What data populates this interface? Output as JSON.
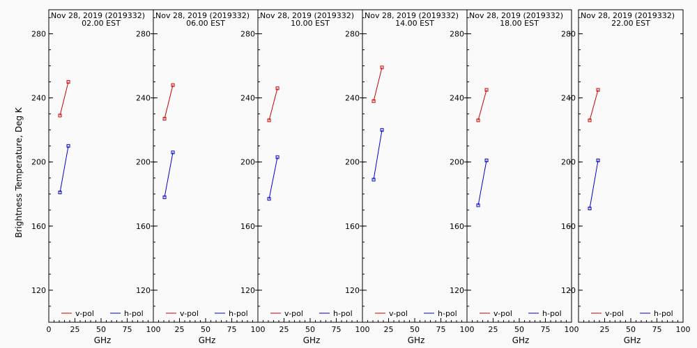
{
  "ylabel": "Brightness Temperature, Deg K",
  "colors": {
    "vpol": "#cc0000",
    "hpol": "#0000cc",
    "background": "#fafafa",
    "axis": "#000000"
  },
  "chart_data": [
    {
      "type": "line",
      "title": "Nov 28, 2019 (2019332)",
      "subtitle": "02.00 EST",
      "xlabel": "GHz",
      "xlim": [
        0,
        100
      ],
      "ylim": [
        100,
        295
      ],
      "xticks": [
        "0",
        "25",
        "50",
        "75",
        "100"
      ],
      "yticks": [
        "120",
        "160",
        "200",
        "240",
        "280"
      ],
      "x": [
        10.7,
        18.7
      ],
      "series": [
        {
          "name": "v-pol",
          "values": [
            229,
            250
          ]
        },
        {
          "name": "h-pol",
          "values": [
            181,
            210
          ]
        }
      ]
    },
    {
      "type": "line",
      "title": "Nov 28, 2019 (2019332)",
      "subtitle": "06.00 EST",
      "xlabel": "GHz",
      "xlim": [
        0,
        100
      ],
      "ylim": [
        100,
        295
      ],
      "xticks": [
        "0",
        "25",
        "50",
        "75",
        "100"
      ],
      "yticks": [
        "120",
        "160",
        "200",
        "240",
        "280"
      ],
      "x": [
        10.7,
        18.7
      ],
      "series": [
        {
          "name": "v-pol",
          "values": [
            227,
            248
          ]
        },
        {
          "name": "h-pol",
          "values": [
            178,
            206
          ]
        }
      ]
    },
    {
      "type": "line",
      "title": "Nov 28, 2019 (2019332)",
      "subtitle": "10.00 EST",
      "xlabel": "GHz",
      "xlim": [
        0,
        100
      ],
      "ylim": [
        100,
        295
      ],
      "xticks": [
        "0",
        "25",
        "50",
        "75",
        "100"
      ],
      "yticks": [
        "120",
        "160",
        "200",
        "240",
        "280"
      ],
      "x": [
        10.7,
        18.7
      ],
      "series": [
        {
          "name": "v-pol",
          "values": [
            226,
            246
          ]
        },
        {
          "name": "h-pol",
          "values": [
            177,
            203
          ]
        }
      ]
    },
    {
      "type": "line",
      "title": "Nov 28, 2019 (2019332)",
      "subtitle": "14.00 EST",
      "xlabel": "GHz",
      "xlim": [
        0,
        100
      ],
      "ylim": [
        100,
        295
      ],
      "xticks": [
        "0",
        "25",
        "50",
        "75",
        "100"
      ],
      "yticks": [
        "120",
        "160",
        "200",
        "240",
        "280"
      ],
      "x": [
        10.7,
        18.7
      ],
      "series": [
        {
          "name": "v-pol",
          "values": [
            238,
            259
          ]
        },
        {
          "name": "h-pol",
          "values": [
            189,
            220
          ]
        }
      ]
    },
    {
      "type": "line",
      "title": "Nov 28, 2019 (2019332)",
      "subtitle": "18.00 EST",
      "xlabel": "GHz",
      "xlim": [
        0,
        100
      ],
      "ylim": [
        100,
        295
      ],
      "xticks": [
        "0",
        "25",
        "50",
        "75",
        "100"
      ],
      "yticks": [
        "120",
        "160",
        "200",
        "240",
        "280"
      ],
      "x": [
        10.7,
        18.7
      ],
      "series": [
        {
          "name": "v-pol",
          "values": [
            226,
            245
          ]
        },
        {
          "name": "h-pol",
          "values": [
            173,
            201
          ]
        }
      ]
    },
    {
      "type": "line",
      "title": "Nov 28, 2019 (2019332)",
      "subtitle": "22.00 EST",
      "xlabel": "GHz",
      "xlim": [
        0,
        100
      ],
      "ylim": [
        100,
        295
      ],
      "xticks": [
        "0",
        "25",
        "50",
        "75",
        "100"
      ],
      "yticks": [
        "120",
        "160",
        "200",
        "240",
        "280"
      ],
      "x": [
        10.7,
        18.7
      ],
      "series": [
        {
          "name": "v-pol",
          "values": [
            226,
            245
          ]
        },
        {
          "name": "h-pol",
          "values": [
            171,
            201
          ]
        }
      ]
    }
  ]
}
